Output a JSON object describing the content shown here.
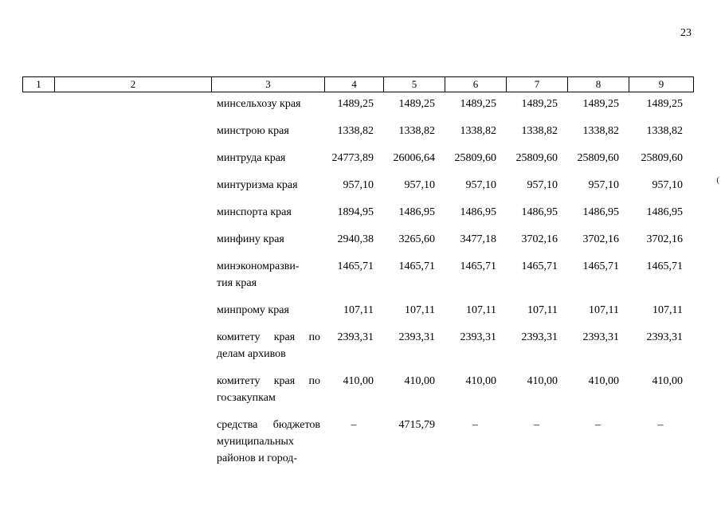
{
  "page": {
    "number": "23"
  },
  "ink_mark": "(",
  "table": {
    "header": [
      "1",
      "2",
      "3",
      "4",
      "5",
      "6",
      "7",
      "8",
      "9"
    ],
    "rows": [
      {
        "label_lines": [
          "минсельхозу края"
        ],
        "values": [
          "1489,25",
          "1489,25",
          "1489,25",
          "1489,25",
          "1489,25",
          "1489,25"
        ]
      },
      {
        "label_lines": [
          "минстрою края"
        ],
        "values": [
          "1338,82",
          "1338,82",
          "1338,82",
          "1338,82",
          "1338,82",
          "1338,82"
        ]
      },
      {
        "label_lines": [
          "минтруда края"
        ],
        "values": [
          "24773,89",
          "26006,64",
          "25809,60",
          "25809,60",
          "25809,60",
          "25809,60"
        ]
      },
      {
        "label_lines": [
          "минтуризма края"
        ],
        "values": [
          "957,10",
          "957,10",
          "957,10",
          "957,10",
          "957,10",
          "957,10"
        ]
      },
      {
        "label_lines": [
          "минспорта края"
        ],
        "values": [
          "1894,95",
          "1486,95",
          "1486,95",
          "1486,95",
          "1486,95",
          "1486,95"
        ]
      },
      {
        "label_lines": [
          "минфину края"
        ],
        "values": [
          "2940,38",
          "3265,60",
          "3477,18",
          "3702,16",
          "3702,16",
          "3702,16"
        ]
      },
      {
        "label_lines": [
          "минэкономразви-",
          "тия края"
        ],
        "values": [
          "1465,71",
          "1465,71",
          "1465,71",
          "1465,71",
          "1465,71",
          "1465,71"
        ]
      },
      {
        "label_lines": [
          "минпрому края"
        ],
        "values": [
          "107,11",
          "107,11",
          "107,11",
          "107,11",
          "107,11",
          "107,11"
        ]
      },
      {
        "label_lines": [
          "комитету края по",
          "делам архивов"
        ],
        "values": [
          "2393,31",
          "2393,31",
          "2393,31",
          "2393,31",
          "2393,31",
          "2393,31"
        ]
      },
      {
        "label_lines": [
          "комитету края по",
          "госзакупкам"
        ],
        "values": [
          "410,00",
          "410,00",
          "410,00",
          "410,00",
          "410,00",
          "410,00"
        ]
      },
      {
        "label_lines": [
          "средства бюджетов",
          "муниципальных",
          "районов и город-"
        ],
        "values": [
          "–",
          "4715,79",
          "–",
          "–",
          "–",
          "–"
        ]
      }
    ]
  }
}
